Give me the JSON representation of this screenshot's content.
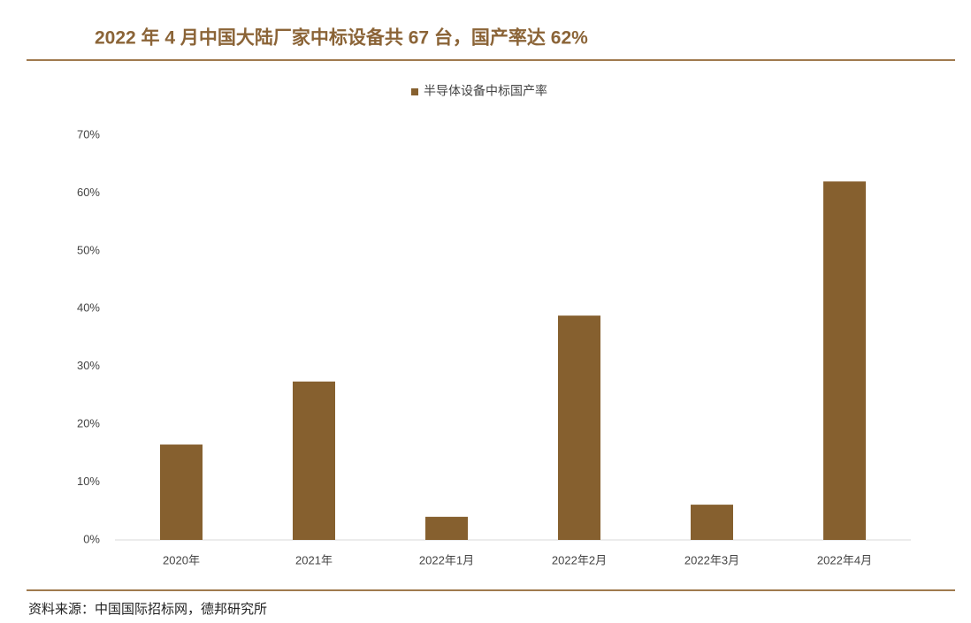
{
  "chart_data": {
    "type": "bar",
    "title": "2022 年 4 月中国大陆厂家中标设备共 67 台，国产率达 62%",
    "legend_label": "半导体设备中标国产率",
    "source": "资料来源：中国国际招标网，德邦研究所",
    "categories": [
      "2020年",
      "2021年",
      "2022年1月",
      "2022年2月",
      "2022年3月",
      "2022年4月"
    ],
    "series": [
      {
        "name": "半导体设备中标国产率",
        "color": "#86602f",
        "values": [
          16.5,
          27.4,
          4.0,
          38.8,
          6.1,
          62
        ]
      }
    ],
    "ylim": [
      0,
      70
    ],
    "yticks": [
      {
        "value": 0,
        "label": "0%"
      },
      {
        "value": 10,
        "label": "10%"
      },
      {
        "value": 20,
        "label": "20%"
      },
      {
        "value": 30,
        "label": "30%"
      },
      {
        "value": 40,
        "label": "40%"
      },
      {
        "value": 50,
        "label": "50%"
      },
      {
        "value": 60,
        "label": "60%"
      },
      {
        "value": 70,
        "label": "70%"
      }
    ],
    "grid": false
  }
}
